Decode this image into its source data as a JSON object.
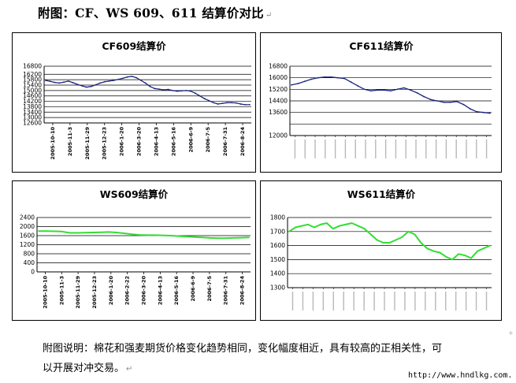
{
  "heading": "附图：CF、WS 609、611 结算价对比",
  "para_mark": "↵",
  "caption": {
    "line1": "附图说明：棉花和强麦期货价格变化趋势相同，变化幅度相近，具有较高的正相关性，可",
    "line2": "以开展对冲交易。",
    "para_mark": "↵"
  },
  "url": "http://www.hndlkg.com.",
  "corner_mark": "+",
  "colors": {
    "cf_line": "#1a237e",
    "ws_line": "#33dd33",
    "grid": "#000000"
  },
  "chart_data": [
    {
      "id": "cf609",
      "type": "line",
      "title": "CF609结算价",
      "ylim": [
        12600,
        16800
      ],
      "yticks": [
        12600,
        13000,
        13400,
        13800,
        14200,
        14600,
        15000,
        15400,
        15800,
        16200,
        16800
      ],
      "ytick_labels": [
        "12600",
        "13000",
        "13400",
        "13800",
        "14200",
        "14600",
        "15000",
        "15400",
        "15800",
        "16200",
        "16800"
      ],
      "xtick_labels": [
        "2005-10-10",
        "2005-11-3",
        "2005-11-29",
        "2005-12-23",
        "2006-1-20",
        "2006-3-20",
        "2006-4-13",
        "2006-5-16",
        "2006-6-9",
        "2006-7-5",
        "2006-7-31",
        "2006-8-24"
      ],
      "grid": true,
      "series": [
        {
          "values": [
            15750,
            15680,
            15600,
            15550,
            15620,
            15700,
            15580,
            15450,
            15350,
            15250,
            15300,
            15420,
            15550,
            15650,
            15700,
            15750,
            15820,
            15900,
            16000,
            16050,
            15950,
            15750,
            15550,
            15300,
            15150,
            15100,
            15050,
            15080,
            15000,
            14950,
            14980,
            15000,
            14950,
            14800,
            14600,
            14400,
            14250,
            14100,
            14000,
            14050,
            14100,
            14100,
            14080,
            14000,
            13950,
            13950
          ]
        }
      ]
    },
    {
      "id": "cf611",
      "type": "line",
      "title": "CF611结算价",
      "ylim": [
        12000,
        16800
      ],
      "yticks": [
        12000,
        12800,
        13600,
        14400,
        15200,
        16000,
        16800
      ],
      "ytick_labels": [
        "12000",
        "13600",
        "14400",
        "15200",
        "16000",
        "16800"
      ],
      "ytick_label_values": [
        12000,
        13600,
        14400,
        15200,
        16000,
        16800
      ],
      "xtick_small_count": 20,
      "grid": true,
      "series": [
        {
          "values": [
            15500,
            15600,
            15750,
            15900,
            16000,
            16050,
            16050,
            16000,
            15950,
            15700,
            15450,
            15200,
            15100,
            15150,
            15150,
            15100,
            15200,
            15300,
            15150,
            14950,
            14700,
            14500,
            14400,
            14300,
            14300,
            14350,
            14150,
            13850,
            13650,
            13600,
            13550
          ]
        }
      ]
    },
    {
      "id": "ws609",
      "type": "line",
      "title": "WS609结算价",
      "ylim": [
        0,
        2400
      ],
      "yticks": [
        0,
        400,
        800,
        1200,
        1600,
        2000,
        2400
      ],
      "ytick_labels": [
        "0",
        "400",
        "800",
        "1200",
        "1600",
        "2000",
        "2400"
      ],
      "xtick_labels": [
        "2005-10-10",
        "2005-11-3",
        "2005-11-29",
        "2005-12-23",
        "2006-1-20",
        "2006-2-22",
        "2006-3-20",
        "2006-4-13",
        "2006-5-16",
        "2006-6-9",
        "2006-7-5",
        "2006-7-31",
        "2006-8-24"
      ],
      "grid": true,
      "series": [
        {
          "values": [
            1800,
            1800,
            1790,
            1780,
            1720,
            1720,
            1730,
            1740,
            1750,
            1760,
            1740,
            1700,
            1660,
            1630,
            1620,
            1620,
            1610,
            1600,
            1580,
            1560,
            1540,
            1520,
            1500,
            1490,
            1490,
            1500,
            1510,
            1520
          ]
        }
      ]
    },
    {
      "id": "ws611",
      "type": "line",
      "title": "WS611结算价",
      "ylim": [
        1300,
        1800
      ],
      "yticks": [
        1300,
        1400,
        1500,
        1600,
        1700,
        1800
      ],
      "ytick_labels": [
        "1300",
        "1400",
        "1500",
        "1600",
        "1700",
        "1800"
      ],
      "xtick_small_count": 20,
      "grid": true,
      "series": [
        {
          "values": [
            1700,
            1730,
            1740,
            1750,
            1730,
            1750,
            1760,
            1720,
            1740,
            1750,
            1760,
            1740,
            1720,
            1680,
            1640,
            1620,
            1620,
            1640,
            1660,
            1700,
            1680,
            1620,
            1580,
            1560,
            1550,
            1520,
            1500,
            1540,
            1530,
            1510,
            1560,
            1580,
            1600
          ]
        }
      ]
    }
  ]
}
